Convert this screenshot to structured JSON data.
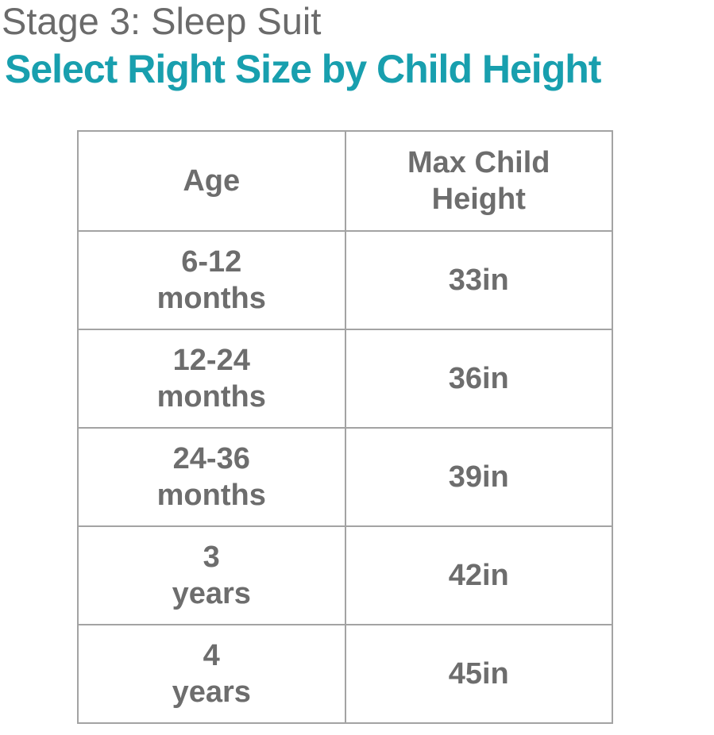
{
  "header": {
    "stage_label": "Stage 3: Sleep Suit",
    "title": "Select Right Size by Child Height"
  },
  "colors": {
    "accent_teal": "#189fae",
    "heading_gray": "#6b6b6b",
    "table_text_gray": "#6d6d6d",
    "table_border_gray": "#a3a3a3"
  },
  "table": {
    "header": {
      "age": "Age",
      "height_line1": "Max Child",
      "height_line2": "Height"
    },
    "rows": [
      {
        "age_line1": "6-12",
        "age_line2": "months",
        "height": "33in"
      },
      {
        "age_line1": "12-24",
        "age_line2": "months",
        "height": "36in"
      },
      {
        "age_line1": "24-36",
        "age_line2": "months",
        "height": "39in"
      },
      {
        "age_line1": "3",
        "age_line2": "years",
        "height": "42in"
      },
      {
        "age_line1": "4",
        "age_line2": "years",
        "height": "45in"
      }
    ]
  },
  "chart_data": {
    "type": "table",
    "title": "Select Right Size by Child Height",
    "subtitle": "Stage 3: Sleep Suit",
    "columns": [
      "Age",
      "Max Child Height"
    ],
    "rows": [
      [
        "6-12 months",
        "33in"
      ],
      [
        "12-24 months",
        "36in"
      ],
      [
        "24-36 months",
        "39in"
      ],
      [
        "3 years",
        "42in"
      ],
      [
        "4 years",
        "45in"
      ]
    ]
  }
}
